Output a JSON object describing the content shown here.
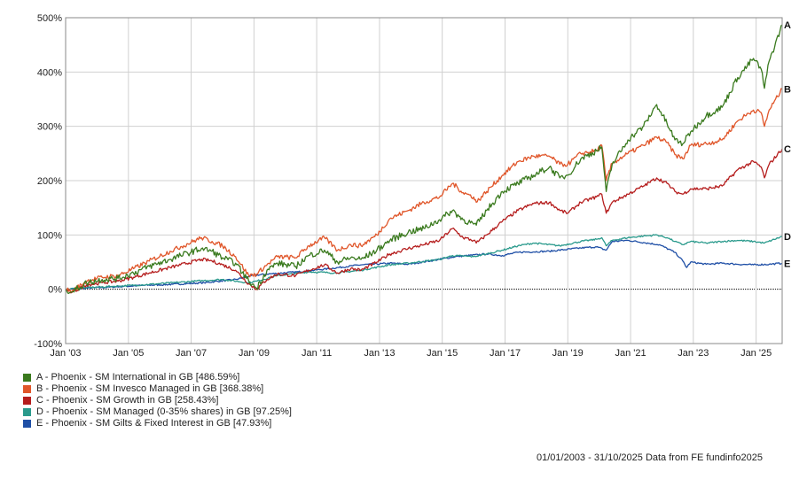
{
  "chart_data": {
    "type": "line",
    "title": "",
    "xlabel": "",
    "ylabel": "",
    "x_tick_labels": [
      "Jan '03",
      "Jan '05",
      "Jan '07",
      "Jan '09",
      "Jan '11",
      "Jan '13",
      "Jan '15",
      "Jan '17",
      "Jan '19",
      "Jan '21",
      "Jan '23",
      "Jan '25"
    ],
    "y_tick_labels": [
      "500%",
      "400%",
      "300%",
      "200%",
      "100%",
      "0%",
      "-100%"
    ],
    "y_ticks": [
      500,
      400,
      300,
      200,
      100,
      0,
      -100
    ],
    "ylim": [
      -100,
      500
    ],
    "xlim": [
      "2003-01-01",
      "2025-10-31"
    ],
    "grid": true,
    "legend_position": "bottom-left",
    "series": [
      {
        "id": "A",
        "name": "A - Phoenix - SM International in GB [486.59%]",
        "color": "#3a7a1e",
        "points": [
          [
            "2003-01-01",
            0
          ],
          [
            "2003-03-15",
            -5
          ],
          [
            "2003-09-01",
            12
          ],
          [
            "2004-03-01",
            18
          ],
          [
            "2004-09-01",
            20
          ],
          [
            "2005-03-01",
            30
          ],
          [
            "2005-09-01",
            42
          ],
          [
            "2006-05-01",
            55
          ],
          [
            "2006-09-01",
            62
          ],
          [
            "2007-05-01",
            75
          ],
          [
            "2007-09-01",
            70
          ],
          [
            "2008-01-01",
            58
          ],
          [
            "2008-06-01",
            48
          ],
          [
            "2008-11-01",
            15
          ],
          [
            "2009-02-01",
            2
          ],
          [
            "2009-06-01",
            35
          ],
          [
            "2009-10-01",
            48
          ],
          [
            "2010-05-01",
            42
          ],
          [
            "2010-10-01",
            62
          ],
          [
            "2011-04-01",
            72
          ],
          [
            "2011-09-01",
            50
          ],
          [
            "2012-02-01",
            58
          ],
          [
            "2012-06-01",
            55
          ],
          [
            "2012-12-01",
            72
          ],
          [
            "2013-05-01",
            90
          ],
          [
            "2013-12-01",
            105
          ],
          [
            "2014-06-01",
            112
          ],
          [
            "2014-12-01",
            128
          ],
          [
            "2015-05-01",
            145
          ],
          [
            "2015-09-01",
            128
          ],
          [
            "2016-01-01",
            120
          ],
          [
            "2016-02-01",
            118
          ],
          [
            "2016-06-01",
            145
          ],
          [
            "2016-12-01",
            180
          ],
          [
            "2017-06-01",
            195
          ],
          [
            "2017-12-01",
            210
          ],
          [
            "2018-06-01",
            225
          ],
          [
            "2018-10-01",
            205
          ],
          [
            "2019-01-01",
            210
          ],
          [
            "2019-06-01",
            240
          ],
          [
            "2019-12-01",
            255
          ],
          [
            "2020-02-01",
            262
          ],
          [
            "2020-03-23",
            180
          ],
          [
            "2020-06-01",
            230
          ],
          [
            "2020-12-01",
            275
          ],
          [
            "2021-06-01",
            300
          ],
          [
            "2021-11-01",
            340
          ],
          [
            "2022-03-01",
            305
          ],
          [
            "2022-06-01",
            275
          ],
          [
            "2022-09-01",
            268
          ],
          [
            "2022-12-01",
            290
          ],
          [
            "2023-06-01",
            320
          ],
          [
            "2023-12-01",
            335
          ],
          [
            "2024-06-01",
            390
          ],
          [
            "2024-12-01",
            425
          ],
          [
            "2025-03-01",
            405
          ],
          [
            "2025-04-08",
            370
          ],
          [
            "2025-06-01",
            420
          ],
          [
            "2025-10-31",
            486.59
          ]
        ]
      },
      {
        "id": "B",
        "name": "B - Phoenix - SM Invesco Managed in GB [368.38%]",
        "color": "#e0562a",
        "points": [
          [
            "2003-01-01",
            0
          ],
          [
            "2003-03-15",
            -4
          ],
          [
            "2003-09-01",
            15
          ],
          [
            "2004-03-01",
            22
          ],
          [
            "2004-09-01",
            25
          ],
          [
            "2005-03-01",
            38
          ],
          [
            "2005-09-01",
            52
          ],
          [
            "2006-05-01",
            70
          ],
          [
            "2006-09-01",
            78
          ],
          [
            "2007-05-01",
            95
          ],
          [
            "2007-09-01",
            88
          ],
          [
            "2008-01-01",
            80
          ],
          [
            "2008-06-01",
            60
          ],
          [
            "2008-11-01",
            25
          ],
          [
            "2009-02-01",
            28
          ],
          [
            "2009-06-01",
            45
          ],
          [
            "2009-10-01",
            60
          ],
          [
            "2010-05-01",
            58
          ],
          [
            "2010-10-01",
            80
          ],
          [
            "2011-04-01",
            95
          ],
          [
            "2011-09-01",
            72
          ],
          [
            "2012-02-01",
            82
          ],
          [
            "2012-06-01",
            80
          ],
          [
            "2012-12-01",
            100
          ],
          [
            "2013-05-01",
            130
          ],
          [
            "2013-12-01",
            145
          ],
          [
            "2014-06-01",
            160
          ],
          [
            "2014-12-01",
            170
          ],
          [
            "2015-05-01",
            195
          ],
          [
            "2015-09-01",
            178
          ],
          [
            "2016-01-01",
            170
          ],
          [
            "2016-02-01",
            160
          ],
          [
            "2016-06-01",
            180
          ],
          [
            "2016-12-01",
            210
          ],
          [
            "2017-06-01",
            235
          ],
          [
            "2017-12-01",
            245
          ],
          [
            "2018-06-01",
            245
          ],
          [
            "2018-10-01",
            230
          ],
          [
            "2019-01-01",
            230
          ],
          [
            "2019-06-01",
            250
          ],
          [
            "2019-12-01",
            255
          ],
          [
            "2020-02-01",
            265
          ],
          [
            "2020-03-23",
            200
          ],
          [
            "2020-06-01",
            232
          ],
          [
            "2020-12-01",
            250
          ],
          [
            "2021-06-01",
            265
          ],
          [
            "2021-11-01",
            280
          ],
          [
            "2022-03-01",
            270
          ],
          [
            "2022-06-01",
            248
          ],
          [
            "2022-09-01",
            240
          ],
          [
            "2022-12-01",
            265
          ],
          [
            "2023-06-01",
            268
          ],
          [
            "2023-12-01",
            275
          ],
          [
            "2024-06-01",
            310
          ],
          [
            "2024-12-01",
            330
          ],
          [
            "2025-03-01",
            325
          ],
          [
            "2025-04-08",
            300
          ],
          [
            "2025-06-01",
            330
          ],
          [
            "2025-10-31",
            368.38
          ]
        ]
      },
      {
        "id": "C",
        "name": "C - Phoenix - SM Growth in GB [258.43%]",
        "color": "#b51d1d",
        "points": [
          [
            "2003-01-01",
            0
          ],
          [
            "2003-03-15",
            -6
          ],
          [
            "2003-09-01",
            8
          ],
          [
            "2004-03-01",
            12
          ],
          [
            "2004-09-01",
            15
          ],
          [
            "2005-03-01",
            22
          ],
          [
            "2005-09-01",
            30
          ],
          [
            "2006-05-01",
            40
          ],
          [
            "2006-09-01",
            45
          ],
          [
            "2007-05-01",
            55
          ],
          [
            "2007-09-01",
            52
          ],
          [
            "2008-01-01",
            45
          ],
          [
            "2008-06-01",
            35
          ],
          [
            "2008-11-01",
            10
          ],
          [
            "2009-02-01",
            0
          ],
          [
            "2009-06-01",
            18
          ],
          [
            "2009-10-01",
            28
          ],
          [
            "2010-05-01",
            25
          ],
          [
            "2010-10-01",
            35
          ],
          [
            "2011-04-01",
            45
          ],
          [
            "2011-09-01",
            30
          ],
          [
            "2012-02-01",
            38
          ],
          [
            "2012-06-01",
            35
          ],
          [
            "2012-12-01",
            50
          ],
          [
            "2013-05-01",
            65
          ],
          [
            "2013-12-01",
            75
          ],
          [
            "2014-06-01",
            82
          ],
          [
            "2014-12-01",
            90
          ],
          [
            "2015-05-01",
            112
          ],
          [
            "2015-09-01",
            95
          ],
          [
            "2016-01-01",
            90
          ],
          [
            "2016-02-01",
            85
          ],
          [
            "2016-06-01",
            100
          ],
          [
            "2016-12-01",
            125
          ],
          [
            "2017-06-01",
            145
          ],
          [
            "2017-12-01",
            158
          ],
          [
            "2018-06-01",
            160
          ],
          [
            "2018-10-01",
            145
          ],
          [
            "2019-01-01",
            140
          ],
          [
            "2019-06-01",
            160
          ],
          [
            "2019-12-01",
            170
          ],
          [
            "2020-02-01",
            175
          ],
          [
            "2020-03-23",
            140
          ],
          [
            "2020-06-01",
            160
          ],
          [
            "2020-12-01",
            175
          ],
          [
            "2021-06-01",
            190
          ],
          [
            "2021-11-01",
            205
          ],
          [
            "2022-03-01",
            195
          ],
          [
            "2022-06-01",
            180
          ],
          [
            "2022-09-01",
            175
          ],
          [
            "2022-12-01",
            185
          ],
          [
            "2023-06-01",
            185
          ],
          [
            "2023-12-01",
            190
          ],
          [
            "2024-06-01",
            220
          ],
          [
            "2024-12-01",
            235
          ],
          [
            "2025-03-01",
            225
          ],
          [
            "2025-04-08",
            205
          ],
          [
            "2025-06-01",
            230
          ],
          [
            "2025-10-31",
            258.43
          ]
        ]
      },
      {
        "id": "D",
        "name": "D - Phoenix - SM Managed (0-35% shares) in GB [97.25%]",
        "color": "#2a9a8c",
        "points": [
          [
            "2003-01-01",
            0
          ],
          [
            "2003-09-01",
            3
          ],
          [
            "2004-06-01",
            5
          ],
          [
            "2005-06-01",
            8
          ],
          [
            "2006-06-01",
            12
          ],
          [
            "2007-06-01",
            16
          ],
          [
            "2008-01-01",
            18
          ],
          [
            "2008-11-01",
            12
          ],
          [
            "2009-02-01",
            15
          ],
          [
            "2009-10-01",
            25
          ],
          [
            "2010-10-01",
            32
          ],
          [
            "2011-09-01",
            30
          ],
          [
            "2012-06-01",
            35
          ],
          [
            "2013-05-01",
            45
          ],
          [
            "2013-12-01",
            48
          ],
          [
            "2014-12-01",
            55
          ],
          [
            "2015-05-01",
            62
          ],
          [
            "2016-01-01",
            60
          ],
          [
            "2016-06-01",
            65
          ],
          [
            "2016-12-01",
            72
          ],
          [
            "2017-06-01",
            80
          ],
          [
            "2017-12-01",
            85
          ],
          [
            "2018-10-01",
            80
          ],
          [
            "2019-06-01",
            88
          ],
          [
            "2019-12-01",
            92
          ],
          [
            "2020-02-01",
            95
          ],
          [
            "2020-03-23",
            80
          ],
          [
            "2020-06-01",
            90
          ],
          [
            "2020-12-01",
            95
          ],
          [
            "2021-06-01",
            98
          ],
          [
            "2021-11-01",
            100
          ],
          [
            "2022-03-01",
            95
          ],
          [
            "2022-06-01",
            88
          ],
          [
            "2022-09-01",
            82
          ],
          [
            "2022-12-01",
            88
          ],
          [
            "2023-06-01",
            85
          ],
          [
            "2023-12-01",
            88
          ],
          [
            "2024-06-01",
            90
          ],
          [
            "2024-12-01",
            88
          ],
          [
            "2025-04-08",
            85
          ],
          [
            "2025-10-31",
            97.25
          ]
        ]
      },
      {
        "id": "E",
        "name": "E - Phoenix - SM Gilts & Fixed Interest in GB [47.93%]",
        "color": "#1f4fa6",
        "points": [
          [
            "2003-01-01",
            0
          ],
          [
            "2003-09-01",
            2
          ],
          [
            "2004-06-01",
            4
          ],
          [
            "2005-06-01",
            7
          ],
          [
            "2006-06-01",
            9
          ],
          [
            "2007-06-01",
            12
          ],
          [
            "2008-06-01",
            18
          ],
          [
            "2008-12-01",
            25
          ],
          [
            "2009-06-01",
            28
          ],
          [
            "2010-06-01",
            32
          ],
          [
            "2011-06-01",
            38
          ],
          [
            "2012-06-01",
            45
          ],
          [
            "2013-06-01",
            48
          ],
          [
            "2013-12-01",
            46
          ],
          [
            "2014-12-01",
            55
          ],
          [
            "2015-06-01",
            60
          ],
          [
            "2016-06-01",
            65
          ],
          [
            "2016-12-01",
            62
          ],
          [
            "2017-06-01",
            68
          ],
          [
            "2018-06-01",
            70
          ],
          [
            "2019-06-01",
            76
          ],
          [
            "2019-12-01",
            78
          ],
          [
            "2020-03-23",
            72
          ],
          [
            "2020-06-01",
            88
          ],
          [
            "2020-12-01",
            90
          ],
          [
            "2021-06-01",
            86
          ],
          [
            "2021-12-01",
            82
          ],
          [
            "2022-06-01",
            68
          ],
          [
            "2022-09-01",
            52
          ],
          [
            "2022-10-15",
            40
          ],
          [
            "2022-12-01",
            50
          ],
          [
            "2023-06-01",
            46
          ],
          [
            "2023-12-01",
            48
          ],
          [
            "2024-06-01",
            46
          ],
          [
            "2024-12-01",
            45
          ],
          [
            "2025-06-01",
            46
          ],
          [
            "2025-10-31",
            47.93
          ]
        ]
      }
    ]
  },
  "footer": {
    "text": "01/01/2003 - 31/10/2025 Data from FE fundinfo2025"
  }
}
